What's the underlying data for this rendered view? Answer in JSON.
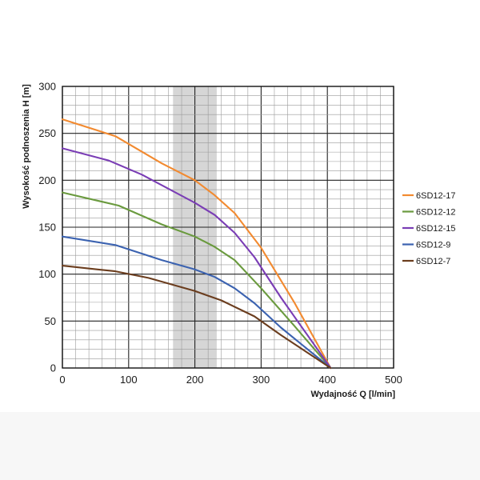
{
  "chart_data": {
    "type": "line",
    "title": "",
    "xlabel": "Wydajność Q [l/min]",
    "ylabel": "Wysokość podnoszenia H [m]",
    "xlim": [
      0,
      500
    ],
    "ylim": [
      0,
      300
    ],
    "x_ticks": [
      0,
      100,
      200,
      300,
      400,
      500
    ],
    "y_ticks": [
      0,
      50,
      100,
      150,
      200,
      250,
      300
    ],
    "grid": true,
    "legend_position": "right",
    "highlight_band": [
      167,
      233
    ],
    "series": [
      {
        "name": "6SD12-17",
        "color": "#f28a30",
        "points": [
          [
            0,
            265
          ],
          [
            80,
            247
          ],
          [
            150,
            218
          ],
          [
            200,
            200
          ],
          [
            230,
            184
          ],
          [
            260,
            165
          ],
          [
            300,
            128
          ],
          [
            350,
            70
          ],
          [
            405,
            0
          ]
        ]
      },
      {
        "name": "6SD12-12",
        "color": "#6a9a3e",
        "points": [
          [
            0,
            187
          ],
          [
            85,
            173
          ],
          [
            150,
            153
          ],
          [
            200,
            140
          ],
          [
            230,
            129
          ],
          [
            260,
            115
          ],
          [
            300,
            85
          ],
          [
            350,
            45
          ],
          [
            405,
            0
          ]
        ]
      },
      {
        "name": "6SD12-15",
        "color": "#7a3db5",
        "points": [
          [
            0,
            234
          ],
          [
            70,
            221
          ],
          [
            120,
            206
          ],
          [
            200,
            176
          ],
          [
            230,
            163
          ],
          [
            260,
            144
          ],
          [
            290,
            118
          ],
          [
            330,
            75
          ],
          [
            405,
            0
          ]
        ]
      },
      {
        "name": "6SD12-9",
        "color": "#3b62b0",
        "points": [
          [
            0,
            140
          ],
          [
            80,
            131
          ],
          [
            150,
            115
          ],
          [
            200,
            105
          ],
          [
            230,
            97
          ],
          [
            260,
            85
          ],
          [
            290,
            69
          ],
          [
            330,
            43
          ],
          [
            405,
            0
          ]
        ]
      },
      {
        "name": "6SD12-7",
        "color": "#6b3d1e",
        "points": [
          [
            0,
            109
          ],
          [
            80,
            103
          ],
          [
            130,
            96
          ],
          [
            200,
            82
          ],
          [
            240,
            72
          ],
          [
            290,
            55
          ],
          [
            330,
            35
          ],
          [
            405,
            0
          ]
        ]
      }
    ]
  }
}
